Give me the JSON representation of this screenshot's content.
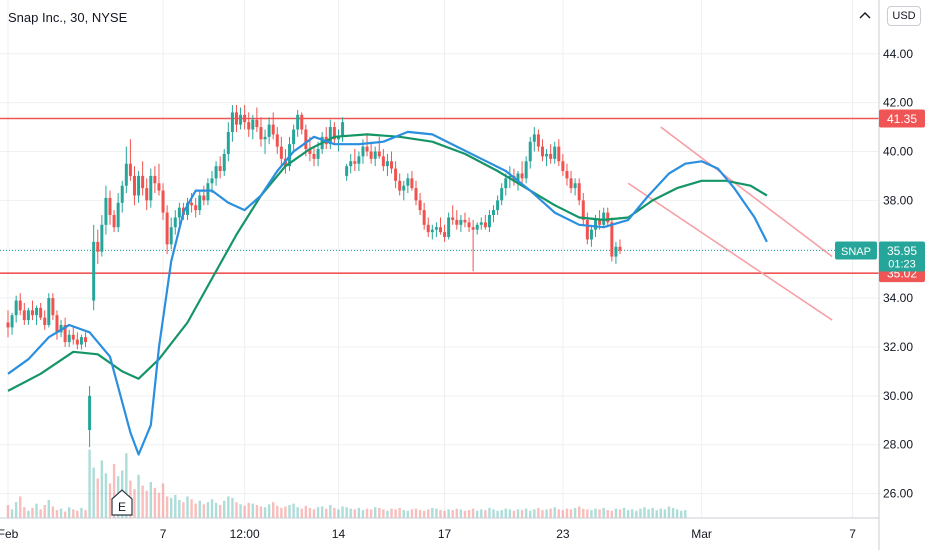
{
  "header": {
    "symbol_label": "Snap Inc., 30, NYSE",
    "currency_button": "USD"
  },
  "colors": {
    "up": "#26a69a",
    "down": "#ef5350",
    "ma_fast": "#2a8fdf",
    "ma_slow": "#159566",
    "level_line": "#f05555",
    "channel": "#f6a0a6",
    "last_price_line": "#26a69a",
    "grid": "#eef0f3",
    "axis_text": "#131722"
  },
  "chart_data": {
    "type": "candlestick",
    "title": "Snap Inc., 30, NYSE",
    "x_tick_labels": [
      "Feb",
      "7",
      "12:00",
      "14",
      "17",
      "23",
      "Mar",
      "7"
    ],
    "x_tick_index": [
      0,
      38,
      58,
      81,
      107,
      136,
      170,
      207
    ],
    "ylim": [
      25.0,
      46.2
    ],
    "y_ticks": [
      26.0,
      28.0,
      30.0,
      32.0,
      34.0,
      36.0,
      38.0,
      40.0,
      42.0,
      44.0
    ],
    "y_tick_labels": [
      "26.00",
      "28.00",
      "30.00",
      "32.00",
      "34.00",
      "36.00",
      "38.00",
      "40.00",
      "42.00",
      "44.00"
    ],
    "grid": true,
    "bar_count_visible": 206,
    "candles_ohlc": [
      [
        33.0,
        33.5,
        32.4,
        32.8
      ],
      [
        32.8,
        33.4,
        32.5,
        33.3
      ],
      [
        33.3,
        34.1,
        33.0,
        33.9
      ],
      [
        33.9,
        34.2,
        33.3,
        33.5
      ],
      [
        33.5,
        33.8,
        32.9,
        33.1
      ],
      [
        33.1,
        33.6,
        32.9,
        33.5
      ],
      [
        33.5,
        33.9,
        33.1,
        33.3
      ],
      [
        33.3,
        33.7,
        32.9,
        33.6
      ],
      [
        33.6,
        33.8,
        33.1,
        33.2
      ],
      [
        33.2,
        33.5,
        32.7,
        32.9
      ],
      [
        32.9,
        34.2,
        32.8,
        34.0
      ],
      [
        34.0,
        34.2,
        33.1,
        33.3
      ],
      [
        33.3,
        33.5,
        32.3,
        32.6
      ],
      [
        32.6,
        33.1,
        32.4,
        32.9
      ],
      [
        32.9,
        33.2,
        32.0,
        32.2
      ],
      [
        32.2,
        32.7,
        32.0,
        32.5
      ],
      [
        32.5,
        32.8,
        32.1,
        32.3
      ],
      [
        32.3,
        32.6,
        31.9,
        32.1
      ],
      [
        32.1,
        32.5,
        31.9,
        32.4
      ],
      [
        32.4,
        32.6,
        32.0,
        32.2
      ],
      [
        28.6,
        30.4,
        27.9,
        30.0
      ],
      [
        33.9,
        37.0,
        33.5,
        36.3
      ],
      [
        36.3,
        36.8,
        35.4,
        35.9
      ],
      [
        35.9,
        37.4,
        35.7,
        37.0
      ],
      [
        37.0,
        38.6,
        36.6,
        38.1
      ],
      [
        38.1,
        38.4,
        37.0,
        37.4
      ],
      [
        37.4,
        37.6,
        36.7,
        36.9
      ],
      [
        36.9,
        38.3,
        36.7,
        37.9
      ],
      [
        37.9,
        38.8,
        37.5,
        38.6
      ],
      [
        38.6,
        40.2,
        38.3,
        39.5
      ],
      [
        39.5,
        40.5,
        38.8,
        39.0
      ],
      [
        39.0,
        39.4,
        37.8,
        38.2
      ],
      [
        38.2,
        39.2,
        37.9,
        39.0
      ],
      [
        39.0,
        39.6,
        38.2,
        38.5
      ],
      [
        38.5,
        38.9,
        37.6,
        38.0
      ],
      [
        38.0,
        39.3,
        37.7,
        39.0
      ],
      [
        39.0,
        39.4,
        38.3,
        38.7
      ],
      [
        38.7,
        39.5,
        38.2,
        38.4
      ],
      [
        38.4,
        38.7,
        37.2,
        37.5
      ],
      [
        37.5,
        37.8,
        35.8,
        36.2
      ],
      [
        36.2,
        37.3,
        36.0,
        36.9
      ],
      [
        36.9,
        37.6,
        36.6,
        37.3
      ],
      [
        37.3,
        37.9,
        37.0,
        37.7
      ],
      [
        37.7,
        37.9,
        37.2,
        37.4
      ],
      [
        37.4,
        38.1,
        37.2,
        37.9
      ],
      [
        37.9,
        38.3,
        37.5,
        37.8
      ],
      [
        37.8,
        38.1,
        37.3,
        37.6
      ],
      [
        37.6,
        38.4,
        37.4,
        38.2
      ],
      [
        38.2,
        38.6,
        37.8,
        38.0
      ],
      [
        38.0,
        38.9,
        37.8,
        38.7
      ],
      [
        38.7,
        39.2,
        38.3,
        38.9
      ],
      [
        38.9,
        39.6,
        38.6,
        39.4
      ],
      [
        39.4,
        39.8,
        38.9,
        39.2
      ],
      [
        39.2,
        40.1,
        39.0,
        39.9
      ],
      [
        39.9,
        41.2,
        39.6,
        40.8
      ],
      [
        40.8,
        41.9,
        40.4,
        41.6
      ],
      [
        41.6,
        41.9,
        40.8,
        41.1
      ],
      [
        41.1,
        41.8,
        40.9,
        41.5
      ],
      [
        41.5,
        41.9,
        40.9,
        41.2
      ],
      [
        41.2,
        41.6,
        40.6,
        40.9
      ],
      [
        40.9,
        41.5,
        40.5,
        41.3
      ],
      [
        41.3,
        41.8,
        40.8,
        41.0
      ],
      [
        41.0,
        41.4,
        40.2,
        40.5
      ],
      [
        40.5,
        40.9,
        39.9,
        40.6
      ],
      [
        40.6,
        41.4,
        40.3,
        41.1
      ],
      [
        41.1,
        41.6,
        40.5,
        40.7
      ],
      [
        40.7,
        41.0,
        39.9,
        40.2
      ],
      [
        40.2,
        40.6,
        39.4,
        39.7
      ],
      [
        39.7,
        40.1,
        39.1,
        39.4
      ],
      [
        39.4,
        40.6,
        39.2,
        40.3
      ],
      [
        40.3,
        41.1,
        40.0,
        40.9
      ],
      [
        40.9,
        41.7,
        40.6,
        41.5
      ],
      [
        41.5,
        41.6,
        40.7,
        40.9
      ],
      [
        40.9,
        41.1,
        39.8,
        40.1
      ],
      [
        40.1,
        40.6,
        39.6,
        39.9
      ],
      [
        39.9,
        40.2,
        39.4,
        39.7
      ],
      [
        39.7,
        40.4,
        39.4,
        40.1
      ],
      [
        40.1,
        40.8,
        39.9,
        40.6
      ],
      [
        40.6,
        41.0,
        40.1,
        40.3
      ],
      [
        40.3,
        41.3,
        40.1,
        41.0
      ],
      [
        41.0,
        41.2,
        40.3,
        40.5
      ],
      [
        40.5,
        40.9,
        40.0,
        40.6
      ],
      [
        40.6,
        41.4,
        40.4,
        41.2
      ],
      [
        39.0,
        39.5,
        38.8,
        39.4
      ],
      [
        39.4,
        39.9,
        39.1,
        39.6
      ],
      [
        39.6,
        40.1,
        39.2,
        39.5
      ],
      [
        39.5,
        40.0,
        39.2,
        39.8
      ],
      [
        39.8,
        40.5,
        39.5,
        40.2
      ],
      [
        40.2,
        40.7,
        39.8,
        40.0
      ],
      [
        40.0,
        40.4,
        39.5,
        39.7
      ],
      [
        39.7,
        40.2,
        39.4,
        40.0
      ],
      [
        40.0,
        40.6,
        39.7,
        39.8
      ],
      [
        39.8,
        40.1,
        39.2,
        39.4
      ],
      [
        39.4,
        39.9,
        39.0,
        39.6
      ],
      [
        39.6,
        40.0,
        39.1,
        39.3
      ],
      [
        39.3,
        39.6,
        38.5,
        38.8
      ],
      [
        38.8,
        39.1,
        38.2,
        38.4
      ],
      [
        38.4,
        38.8,
        38.0,
        38.6
      ],
      [
        38.6,
        39.1,
        38.3,
        38.9
      ],
      [
        38.9,
        39.2,
        38.4,
        38.5
      ],
      [
        38.5,
        38.8,
        37.8,
        38.0
      ],
      [
        38.0,
        38.3,
        37.4,
        37.6
      ],
      [
        37.6,
        37.9,
        36.8,
        37.0
      ],
      [
        37.0,
        37.3,
        36.5,
        36.7
      ],
      [
        36.7,
        37.0,
        36.4,
        36.8
      ],
      [
        36.8,
        37.1,
        36.5,
        36.9
      ],
      [
        36.9,
        37.3,
        36.6,
        36.7
      ],
      [
        36.7,
        37.0,
        36.3,
        36.5
      ],
      [
        36.5,
        37.5,
        36.4,
        37.3
      ],
      [
        37.3,
        37.8,
        37.0,
        37.2
      ],
      [
        37.2,
        37.6,
        36.8,
        37.0
      ],
      [
        37.0,
        37.4,
        36.7,
        37.2
      ],
      [
        37.2,
        37.5,
        36.9,
        37.1
      ],
      [
        37.1,
        37.3,
        36.7,
        36.9
      ],
      [
        36.9,
        37.2,
        35.1,
        36.8
      ],
      [
        36.8,
        37.1,
        36.6,
        37.0
      ],
      [
        37.0,
        37.3,
        36.8,
        37.1
      ],
      [
        37.1,
        37.4,
        36.8,
        36.9
      ],
      [
        36.9,
        37.6,
        36.7,
        37.4
      ],
      [
        37.4,
        37.8,
        37.1,
        37.6
      ],
      [
        37.6,
        38.2,
        37.4,
        38.0
      ],
      [
        38.0,
        38.7,
        37.8,
        38.5
      ],
      [
        38.5,
        39.1,
        38.2,
        38.9
      ],
      [
        38.9,
        39.4,
        38.5,
        39.0
      ],
      [
        39.0,
        39.3,
        38.6,
        38.8
      ],
      [
        38.8,
        39.2,
        38.4,
        39.1
      ],
      [
        39.1,
        39.6,
        38.7,
        38.9
      ],
      [
        38.9,
        39.8,
        38.7,
        39.6
      ],
      [
        39.6,
        40.6,
        39.3,
        40.4
      ],
      [
        40.4,
        41.0,
        40.0,
        40.7
      ],
      [
        40.7,
        40.9,
        40.0,
        40.2
      ],
      [
        40.2,
        40.5,
        39.6,
        39.8
      ],
      [
        39.8,
        40.1,
        39.4,
        39.9
      ],
      [
        39.9,
        40.3,
        39.5,
        39.7
      ],
      [
        39.7,
        40.4,
        39.5,
        40.2
      ],
      [
        40.2,
        40.5,
        39.4,
        39.6
      ],
      [
        39.6,
        39.9,
        39.0,
        39.2
      ],
      [
        39.2,
        39.5,
        38.6,
        38.9
      ],
      [
        38.9,
        39.2,
        38.3,
        38.5
      ],
      [
        38.5,
        38.9,
        38.2,
        38.7
      ],
      [
        38.7,
        38.9,
        37.8,
        38.0
      ],
      [
        38.0,
        38.3,
        37.0,
        37.2
      ],
      [
        37.2,
        37.5,
        36.2,
        36.4
      ],
      [
        36.4,
        37.0,
        36.1,
        36.8
      ],
      [
        36.8,
        37.4,
        36.5,
        37.2
      ],
      [
        37.2,
        37.6,
        36.8,
        37.0
      ],
      [
        37.0,
        37.7,
        36.9,
        37.5
      ],
      [
        37.5,
        37.7,
        36.9,
        37.1
      ],
      [
        37.1,
        37.3,
        35.5,
        35.7
      ],
      [
        35.7,
        36.3,
        35.4,
        36.1
      ],
      [
        36.1,
        36.4,
        35.8,
        35.95
      ]
    ],
    "volume_levels": [
      0.18,
      0.12,
      0.22,
      0.3,
      0.15,
      0.1,
      0.14,
      0.2,
      0.12,
      0.18,
      0.25,
      0.16,
      0.11,
      0.13,
      0.09,
      0.15,
      0.12,
      0.1,
      0.14,
      0.11,
      0.95,
      0.7,
      0.55,
      0.8,
      0.62,
      0.48,
      0.75,
      0.58,
      0.66,
      0.9,
      0.52,
      0.4,
      0.6,
      0.45,
      0.38,
      0.5,
      0.42,
      0.35,
      0.48,
      0.3,
      0.28,
      0.32,
      0.25,
      0.22,
      0.3,
      0.26,
      0.2,
      0.24,
      0.19,
      0.22,
      0.26,
      0.21,
      0.18,
      0.24,
      0.3,
      0.28,
      0.22,
      0.19,
      0.17,
      0.21,
      0.2,
      0.18,
      0.16,
      0.15,
      0.19,
      0.22,
      0.17,
      0.14,
      0.16,
      0.18,
      0.2,
      0.15,
      0.13,
      0.17,
      0.14,
      0.12,
      0.15,
      0.16,
      0.13,
      0.18,
      0.14,
      0.12,
      0.16,
      0.15,
      0.13,
      0.12,
      0.14,
      0.11,
      0.13,
      0.12,
      0.15,
      0.14,
      0.12,
      0.1,
      0.13,
      0.12,
      0.14,
      0.11,
      0.1,
      0.12,
      0.13,
      0.11,
      0.1,
      0.12,
      0.14,
      0.13,
      0.11,
      0.1,
      0.12,
      0.11,
      0.13,
      0.12,
      0.1,
      0.11,
      0.13,
      0.1,
      0.12,
      0.11,
      0.14,
      0.12,
      0.1,
      0.11,
      0.13,
      0.12,
      0.1,
      0.12,
      0.11,
      0.13,
      0.1,
      0.12,
      0.14,
      0.11,
      0.12,
      0.13,
      0.15,
      0.12,
      0.11,
      0.13,
      0.12,
      0.14,
      0.16,
      0.13,
      0.12,
      0.11,
      0.13,
      0.12,
      0.14,
      0.11,
      0.1,
      0.13,
      0.12,
      0.14,
      0.11,
      0.12,
      0.1,
      0.13,
      0.15,
      0.12,
      0.14,
      0.11,
      0.13,
      0.12,
      0.16,
      0.14,
      0.12,
      0.1,
      0.11
    ],
    "earnings_marker": {
      "label": "E"
    },
    "ma_fast_points": [
      [
        0,
        30.9
      ],
      [
        5,
        31.5
      ],
      [
        10,
        32.4
      ],
      [
        15,
        32.9
      ],
      [
        20,
        32.6
      ],
      [
        25,
        31.6
      ],
      [
        30,
        28.5
      ],
      [
        32,
        27.6
      ],
      [
        35,
        28.8
      ],
      [
        37,
        32.0
      ],
      [
        40,
        35.5
      ],
      [
        43,
        37.5
      ],
      [
        46,
        38.4
      ],
      [
        50,
        38.4
      ],
      [
        54,
        37.9
      ],
      [
        58,
        37.6
      ],
      [
        62,
        38.2
      ],
      [
        66,
        39.2
      ],
      [
        70,
        40.0
      ],
      [
        75,
        40.6
      ],
      [
        80,
        40.3
      ],
      [
        86,
        40.3
      ],
      [
        92,
        40.4
      ],
      [
        98,
        40.8
      ],
      [
        104,
        40.7
      ],
      [
        110,
        40.2
      ],
      [
        116,
        39.7
      ],
      [
        122,
        39.2
      ],
      [
        128,
        38.4
      ],
      [
        134,
        37.5
      ],
      [
        140,
        37.0
      ],
      [
        146,
        36.9
      ],
      [
        152,
        37.2
      ],
      [
        157,
        38.2
      ],
      [
        162,
        39.1
      ],
      [
        166,
        39.5
      ],
      [
        170,
        39.6
      ],
      [
        174,
        39.3
      ],
      [
        178,
        38.5
      ],
      [
        183,
        37.3
      ],
      [
        186,
        36.3
      ]
    ],
    "ma_slow_points": [
      [
        0,
        30.2
      ],
      [
        8,
        30.9
      ],
      [
        16,
        31.8
      ],
      [
        22,
        31.7
      ],
      [
        28,
        31.0
      ],
      [
        32,
        30.7
      ],
      [
        37,
        31.5
      ],
      [
        44,
        33.0
      ],
      [
        50,
        34.8
      ],
      [
        56,
        36.6
      ],
      [
        62,
        38.2
      ],
      [
        68,
        39.4
      ],
      [
        74,
        40.1
      ],
      [
        80,
        40.6
      ],
      [
        88,
        40.7
      ],
      [
        96,
        40.6
      ],
      [
        104,
        40.4
      ],
      [
        112,
        39.9
      ],
      [
        120,
        39.2
      ],
      [
        128,
        38.4
      ],
      [
        134,
        37.8
      ],
      [
        140,
        37.3
      ],
      [
        146,
        37.2
      ],
      [
        152,
        37.3
      ],
      [
        158,
        38.0
      ],
      [
        164,
        38.5
      ],
      [
        170,
        38.8
      ],
      [
        176,
        38.8
      ],
      [
        182,
        38.6
      ],
      [
        186,
        38.2
      ]
    ],
    "horizontal_levels": [
      {
        "price": 41.35,
        "label": "41.35"
      },
      {
        "price": 35.02,
        "label": "35.02"
      }
    ],
    "channel_lines": [
      {
        "from": [
          160,
          41.0
        ],
        "to": [
          202,
          35.7
        ]
      },
      {
        "from": [
          152,
          38.7
        ],
        "to": [
          202,
          33.1
        ]
      }
    ],
    "last_price": {
      "symbol": "SNAP",
      "value": "35.95",
      "countdown": "01:23",
      "price": 35.95
    }
  }
}
